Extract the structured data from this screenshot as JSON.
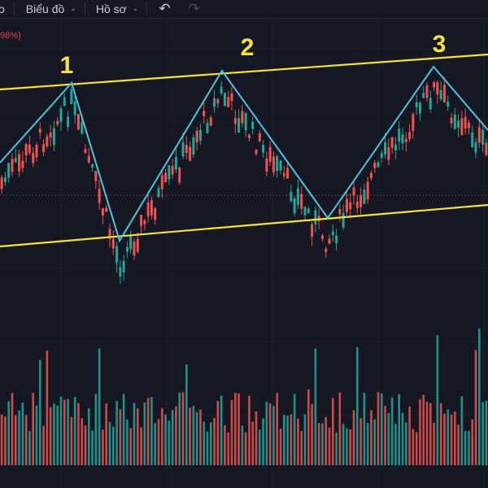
{
  "toolbar": {
    "items": [
      {
        "label": "o",
        "has_dropdown": false
      },
      {
        "label": "Biểu đồ",
        "has_dropdown": true
      },
      {
        "label": "Hồ sơ",
        "has_dropdown": true
      }
    ],
    "undo_icon": "undo-icon",
    "redo_icon": "redo-icon",
    "chevron_icon": "chevron-down-icon"
  },
  "header": {
    "change_percent_fragment": "98%)"
  },
  "annotations": {
    "peak_labels": [
      "1",
      "2",
      "3"
    ]
  },
  "colors": {
    "background": "#151823",
    "up_candle": "#22a69a",
    "down_candle": "#ef5350",
    "channel_lines": "#f6e23a",
    "zigzag": "#4fc3de",
    "peak_labels": "#f6e23a",
    "reference_line": "#b03a4c"
  },
  "chart_data": {
    "type": "candlestick",
    "description_visible": "price candles with volume bars, ascending channel and zigzag through three peaks",
    "channel": {
      "upper": {
        "from": [
          0,
          110
        ],
        "to": [
          600,
          67
        ]
      },
      "lower": {
        "from": [
          0,
          303
        ],
        "to": [
          600,
          252
        ]
      }
    },
    "zigzag_points": [
      [
        0,
        200
      ],
      [
        88,
        102
      ],
      [
        147,
        296
      ],
      [
        273,
        87
      ],
      [
        403,
        268
      ],
      [
        533,
        82
      ],
      [
        600,
        160
      ]
    ],
    "peak_markers": [
      {
        "label": "1",
        "x": 88,
        "y": 102
      },
      {
        "label": "2",
        "x": 273,
        "y": 87
      },
      {
        "label": "3",
        "x": 533,
        "y": 82
      }
    ],
    "reference_price_level_y": 240,
    "candles": {
      "count": 140,
      "seed_path": [
        [
          0,
          200
        ],
        [
          88,
          102
        ],
        [
          147,
          296
        ],
        [
          273,
          87
        ],
        [
          403,
          268
        ],
        [
          533,
          82
        ],
        [
          600,
          160
        ]
      ]
    },
    "volume": {
      "count": 140,
      "baseline_y": 572
    },
    "grid": true,
    "legend": "none"
  }
}
